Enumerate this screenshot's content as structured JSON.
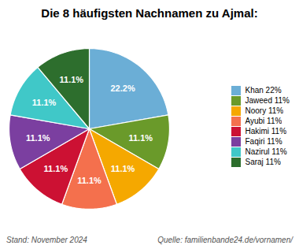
{
  "chart_data": {
    "type": "pie",
    "title": "Die 8 häufigsten Nachnamen zu Ajmal:",
    "categories": [
      "Khan 22%",
      "Jaweed 11%",
      "Noory 11%",
      "Ayubi 11%",
      "Hakimi 11%",
      "Faqiri 11%",
      "Nazirul 11%",
      "Saraj 11%"
    ],
    "values": [
      22.2,
      11.1,
      11.1,
      11.1,
      11.1,
      11.1,
      11.1,
      11.1
    ],
    "value_labels": [
      "22.2%",
      "11.1%",
      "11.1%",
      "11.1%",
      "11.1%",
      "11.1%",
      "11.1%",
      "11.1%"
    ],
    "colors": [
      "#6baed6",
      "#6a9a2a",
      "#f5a800",
      "#f4704d",
      "#cc1133",
      "#7b3fa0",
      "#40c8c8",
      "#2d6e2d"
    ],
    "data_labels": true,
    "legend": "right",
    "annotations": [
      "Stand: November 2024",
      "Quelle: familienbande24.de/vornamen/"
    ]
  }
}
